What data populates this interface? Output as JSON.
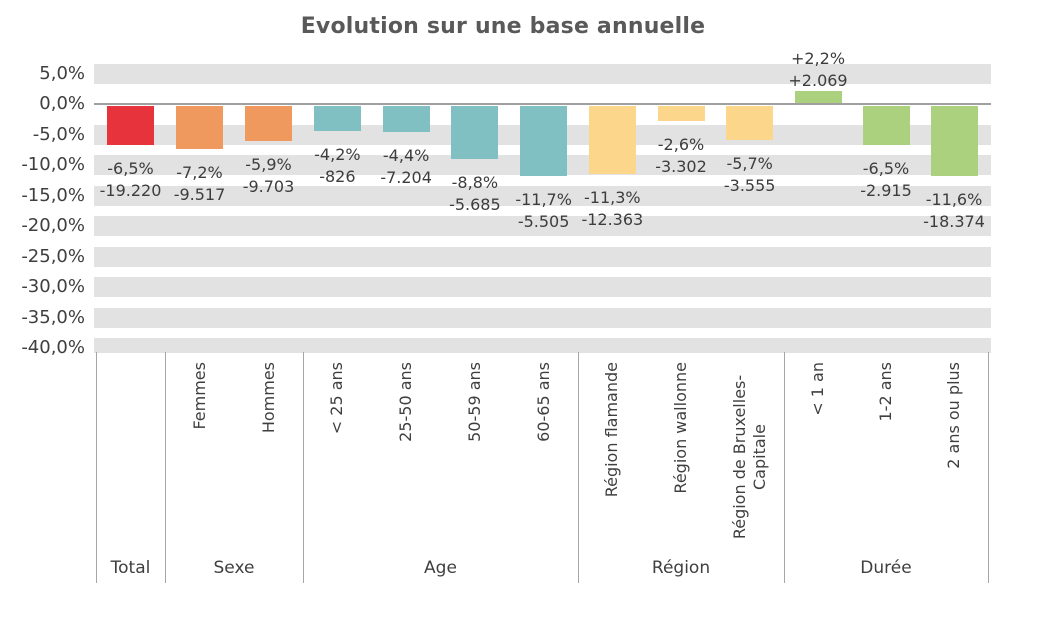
{
  "title": "Evolution sur une base annuelle",
  "chart_data": {
    "type": "bar",
    "title": "Evolution sur une base annuelle",
    "value_unit": "%",
    "ylim": [
      -40,
      5
    ],
    "y_step": 5,
    "y_tick_labels": [
      "5,0%",
      "0,0%",
      "-5,0%",
      "-10,0%",
      "-15,0%",
      "-20,0%",
      "-25,0%",
      "-30,0%",
      "-35,0%",
      "-40,0%"
    ],
    "gridlines": "horizontal-gray-bands",
    "zero_line": true,
    "legend": "none",
    "band_color": "#e2e2e2",
    "zero_line_color": "#a0a0a0",
    "groups": [
      {
        "label": "Total",
        "color": "#e7333c",
        "bars": [
          {
            "category": "",
            "pct": -6.5,
            "pct_label": "-6,5%",
            "abs": -19220,
            "abs_label": "-19.220"
          }
        ]
      },
      {
        "label": "Sexe",
        "color": "#f0995e",
        "bars": [
          {
            "category": "Femmes",
            "pct": -7.2,
            "pct_label": "-7,2%",
            "abs": -9517,
            "abs_label": "-9.517"
          },
          {
            "category": "Hommes",
            "pct": -5.9,
            "pct_label": "-5,9%",
            "abs": -9703,
            "abs_label": "-9.703"
          }
        ]
      },
      {
        "label": "Age",
        "color": "#81c0c2",
        "bars": [
          {
            "category": "< 25 ans",
            "pct": -4.2,
            "pct_label": "-4,2%",
            "abs": -826,
            "abs_label": "-826"
          },
          {
            "category": "25-50 ans",
            "pct": -4.4,
            "pct_label": "-4,4%",
            "abs": -7204,
            "abs_label": "-7.204"
          },
          {
            "category": "50-59 ans",
            "pct": -8.8,
            "pct_label": "-8,8%",
            "abs": -5685,
            "abs_label": "-5.685"
          },
          {
            "category": "60-65 ans",
            "pct": -11.7,
            "pct_label": "-11,7%",
            "abs": -5505,
            "abs_label": "-5.505"
          }
        ]
      },
      {
        "label": "Région",
        "color": "#fcd68a",
        "bars": [
          {
            "category": "Région flamande",
            "pct": -11.3,
            "pct_label": "-11,3%",
            "abs": -12363,
            "abs_label": "-12.363"
          },
          {
            "category": "Région wallonne",
            "pct": -2.6,
            "pct_label": "-2,6%",
            "abs": -3302,
            "abs_label": "-3.302"
          },
          {
            "category": "Région de Bruxelles-Capitale",
            "category_lines": [
              "Région de Bruxelles-",
              "Capitale"
            ],
            "pct": -5.7,
            "pct_label": "-5,7%",
            "abs": -3555,
            "abs_label": "-3.555"
          }
        ]
      },
      {
        "label": "Durée",
        "color": "#abd17e",
        "bars": [
          {
            "category": "< 1 an",
            "pct": 2.2,
            "pct_label": "+2,2%",
            "abs": 2069,
            "abs_label": "+2.069"
          },
          {
            "category": "1-2 ans",
            "pct": -6.5,
            "pct_label": "-6,5%",
            "abs": -2915,
            "abs_label": "-2.915"
          },
          {
            "category": "2 ans ou plus",
            "pct": -11.6,
            "pct_label": "-11,6%",
            "abs": -18374,
            "abs_label": "-18.374"
          }
        ]
      }
    ]
  }
}
